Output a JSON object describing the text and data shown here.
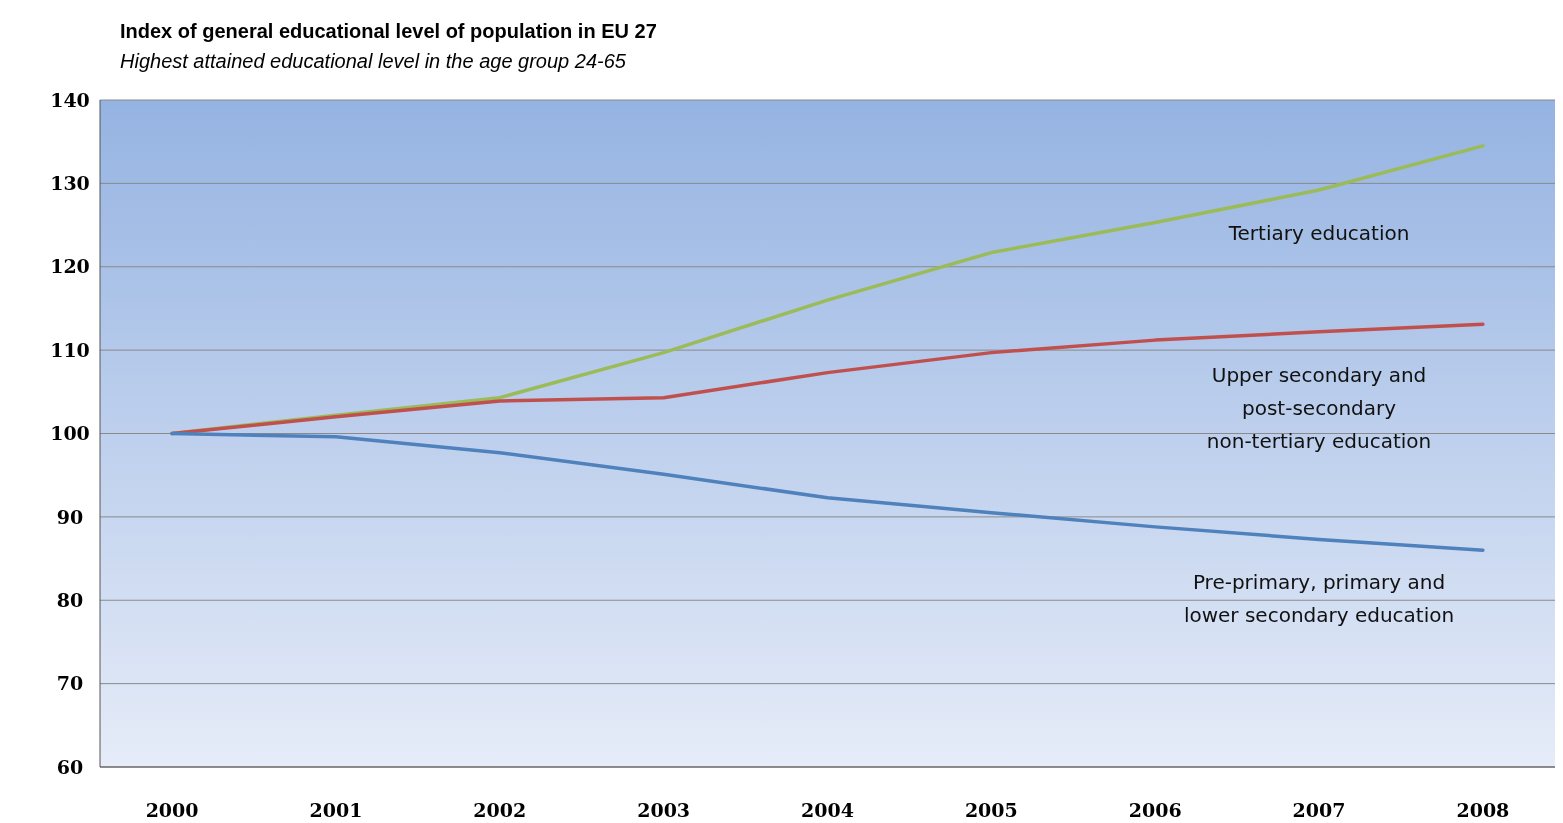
{
  "chart_data": {
    "type": "line",
    "title": "Index of general educational level of population in  EU 27",
    "subtitle": "Highest attained educational level in the age group 24-65",
    "categories": [
      "2000",
      "2001",
      "2002",
      "2003",
      "2004",
      "2005",
      "2006",
      "2007",
      "2008"
    ],
    "series": [
      {
        "name": "Tertiary education",
        "color": "#9bbb59",
        "values": [
          100,
          102.2,
          104.3,
          109.7,
          116,
          121.7,
          125.3,
          129.2,
          134.5
        ]
      },
      {
        "name": "Upper secondary and post-secondary non-tertiary education",
        "color": "#c0504d",
        "values": [
          100,
          102,
          103.9,
          104.3,
          107.3,
          109.7,
          111.2,
          112.2,
          113.1
        ]
      },
      {
        "name": "Pre-primary, primary and lower secondary education",
        "color": "#4f81bd",
        "values": [
          100,
          99.6,
          97.7,
          95.1,
          92.3,
          90.5,
          88.8,
          87.3,
          86.0
        ]
      }
    ],
    "ylim": [
      60,
      140
    ],
    "yticks": [
      60,
      70,
      80,
      90,
      100,
      110,
      120,
      130,
      140
    ],
    "grid": "y"
  }
}
